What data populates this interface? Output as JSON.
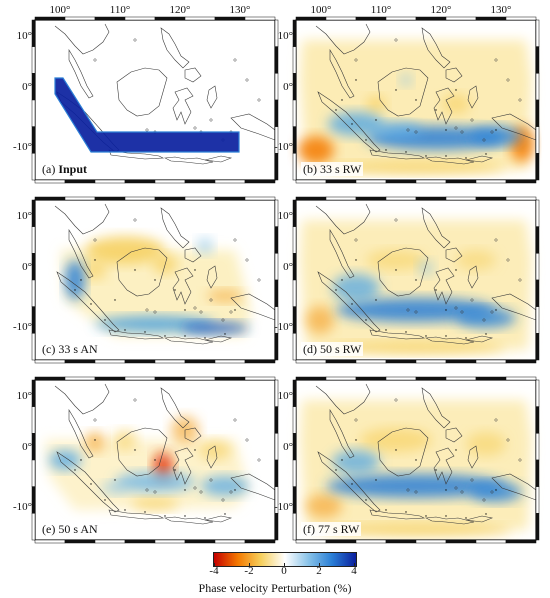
{
  "lon_ticks": [
    "100°",
    "110°",
    "120°",
    "130°"
  ],
  "lat_ticks": [
    "10°",
    "0°",
    "-10°"
  ],
  "panels": [
    {
      "id": "a",
      "prefix": "(a) ",
      "label": "Input",
      "bold": true
    },
    {
      "id": "b",
      "prefix": "(b) ",
      "label": "33 s RW",
      "bold": false
    },
    {
      "id": "c",
      "prefix": "(c) ",
      "label": "33 s AN",
      "bold": false
    },
    {
      "id": "d",
      "prefix": "(d) ",
      "label": "50 s RW",
      "bold": false
    },
    {
      "id": "e",
      "prefix": "(e) ",
      "label": "50 s AN",
      "bold": false
    },
    {
      "id": "f",
      "prefix": "(f) ",
      "label": "77 s RW",
      "bold": false
    }
  ],
  "colorbar": {
    "title": "Phase velocity Perturbation (%)",
    "ticks": [
      "-4",
      "-2",
      "0",
      "2",
      "4"
    ],
    "min": -4,
    "max": 4,
    "colors": [
      "#c40000",
      "#f47a00",
      "#f6cf5c",
      "#ffffff",
      "#86c1e8",
      "#2b7fd6",
      "#0a1f9e"
    ]
  }
}
